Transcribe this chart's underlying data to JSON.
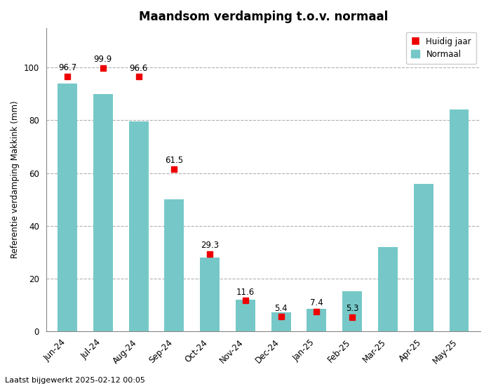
{
  "title": "Maandsom verdamping t.o.v. normaal",
  "ylabel": "Referentie verdamping Makkink (mm)",
  "footer": "Laatst bijgewerkt 2025-02-12 00:05",
  "categories": [
    "Jun-24",
    "Jul-24",
    "Aug-24",
    "Sep-24",
    "Oct-24",
    "Nov-24",
    "Dec-24",
    "Jan-25",
    "Feb-25",
    "Mar-25",
    "Apr-25",
    "May-25"
  ],
  "normaal": [
    94,
    90,
    79.5,
    50,
    28,
    12,
    7,
    8.5,
    15,
    32,
    56,
    84
  ],
  "huidig": [
    96.7,
    99.9,
    96.6,
    61.5,
    29.3,
    11.6,
    5.4,
    7.4,
    5.3,
    null,
    null,
    null
  ],
  "huidig_labels": [
    "96.7",
    "99.9",
    "96.6",
    "61.5",
    "29.3",
    "11.6",
    "5.4",
    "7.4",
    "5.3",
    null,
    null,
    null
  ],
  "bar_color": "#76c8c8",
  "marker_color": "#ee0000",
  "background_color": "#ffffff",
  "grid_color": "#b0b0b0",
  "ylim": [
    0,
    115
  ],
  "yticks": [
    0,
    20,
    40,
    60,
    80,
    100
  ],
  "legend_huidig": "Huidig jaar",
  "legend_normaal": "Normaal",
  "title_fontsize": 12,
  "label_fontsize": 8.5,
  "tick_fontsize": 8.5,
  "footer_fontsize": 8,
  "annotation_fontsize": 8.5
}
